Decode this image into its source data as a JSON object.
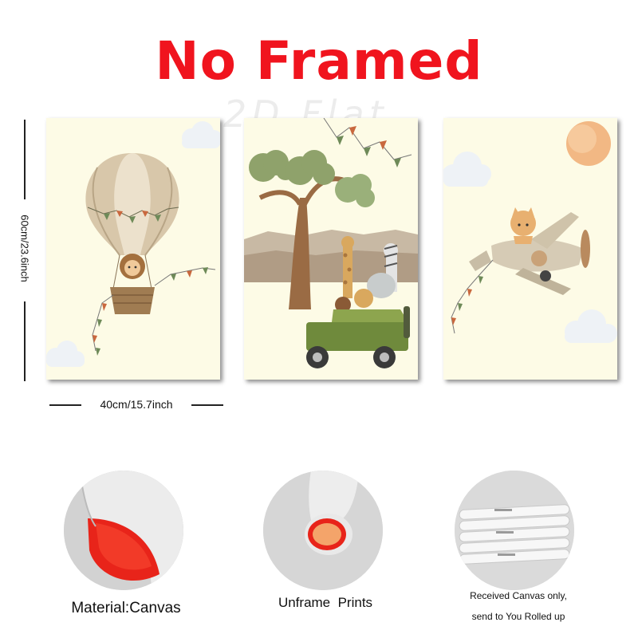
{
  "title": "No Framed",
  "watermark": "2D Flat",
  "dimensions": {
    "height_label": "60cm/23.6inch",
    "width_label": "40cm/15.7inch"
  },
  "captions": {
    "material": "Material:Canvas",
    "unframe": "Unframe  Prints",
    "received_line1": "Received Canvas only,",
    "received_line2": "send to You Rolled up"
  },
  "colors": {
    "title_red": "#f0141e",
    "poster_background": "#fdfbe6",
    "canvas_inner_red": "#e8241a"
  },
  "posters": [
    {
      "subject": "lion-in-hot-air-balloon"
    },
    {
      "subject": "safari-animals-in-jeep"
    },
    {
      "subject": "cat-in-airplane"
    }
  ]
}
